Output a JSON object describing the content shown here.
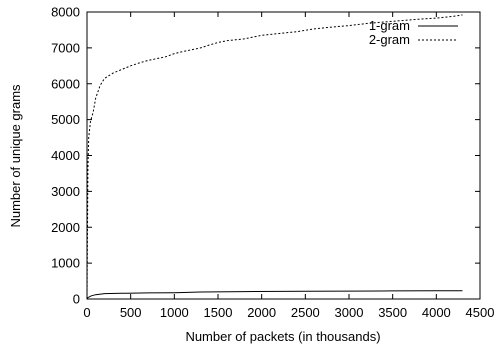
{
  "chart_data": {
    "type": "line",
    "title": "",
    "xlabel": "Number of packets (in thousands)",
    "ylabel": "Number of unique grams",
    "xlim": [
      0,
      4500
    ],
    "ylim": [
      0,
      8000
    ],
    "x_ticks": [
      0,
      500,
      1000,
      1500,
      2000,
      2500,
      3000,
      3500,
      4000,
      4500
    ],
    "y_ticks": [
      0,
      1000,
      2000,
      3000,
      4000,
      5000,
      6000,
      7000,
      8000
    ],
    "grid": false,
    "legend_position": "top-right",
    "series": [
      {
        "name": "1-gram",
        "line_style": "solid",
        "color": "#000000",
        "points": [
          [
            0,
            0
          ],
          [
            10,
            40
          ],
          [
            50,
            90
          ],
          [
            100,
            120
          ],
          [
            200,
            150
          ],
          [
            400,
            160
          ],
          [
            700,
            170
          ],
          [
            1000,
            175
          ],
          [
            1300,
            195
          ],
          [
            1800,
            205
          ],
          [
            2500,
            215
          ],
          [
            3000,
            220
          ],
          [
            3500,
            225
          ],
          [
            4000,
            228
          ],
          [
            4300,
            230
          ]
        ]
      },
      {
        "name": "2-gram",
        "line_style": "dotted",
        "color": "#000000",
        "points": [
          [
            0,
            0
          ],
          [
            10,
            3600
          ],
          [
            20,
            4500
          ],
          [
            40,
            4950
          ],
          [
            70,
            5200
          ],
          [
            100,
            5600
          ],
          [
            150,
            5950
          ],
          [
            200,
            6150
          ],
          [
            300,
            6300
          ],
          [
            400,
            6400
          ],
          [
            500,
            6500
          ],
          [
            600,
            6580
          ],
          [
            700,
            6650
          ],
          [
            800,
            6700
          ],
          [
            900,
            6750
          ],
          [
            1000,
            6840
          ],
          [
            1100,
            6900
          ],
          [
            1200,
            6950
          ],
          [
            1300,
            7000
          ],
          [
            1400,
            7080
          ],
          [
            1500,
            7150
          ],
          [
            1600,
            7200
          ],
          [
            1800,
            7250
          ],
          [
            2000,
            7350
          ],
          [
            2200,
            7400
          ],
          [
            2400,
            7450
          ],
          [
            2600,
            7530
          ],
          [
            2800,
            7580
          ],
          [
            3000,
            7620
          ],
          [
            3200,
            7680
          ],
          [
            3400,
            7720
          ],
          [
            3600,
            7760
          ],
          [
            3800,
            7800
          ],
          [
            4000,
            7830
          ],
          [
            4200,
            7880
          ],
          [
            4300,
            7920
          ]
        ]
      }
    ]
  }
}
